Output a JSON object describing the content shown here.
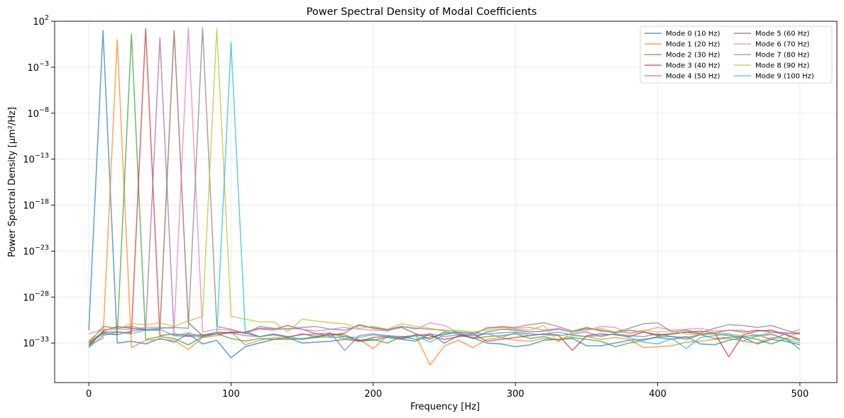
{
  "chart_data": {
    "type": "line",
    "title": "Power Spectral Density of Modal Coefficients",
    "xlabel": "Frequency [Hz]",
    "ylabel": "Power Spectral Density [μm²/Hz]",
    "xlim": [
      -24,
      526
    ],
    "ylog": true,
    "ylim_exp": [
      -37.3,
      2
    ],
    "x_ticks": [
      0,
      100,
      200,
      300,
      400,
      500
    ],
    "x_tick_labels": [
      "0",
      "100",
      "200",
      "300",
      "400",
      "500"
    ],
    "y_ticks_exp": [
      -33,
      -28,
      -23,
      -18,
      -13,
      -8,
      -3,
      2
    ],
    "y_tick_labels": [
      {
        "base": "10",
        "exp": "−33"
      },
      {
        "base": "10",
        "exp": "−28"
      },
      {
        "base": "10",
        "exp": "−23"
      },
      {
        "base": "10",
        "exp": "−18"
      },
      {
        "base": "10",
        "exp": "−13"
      },
      {
        "base": "10",
        "exp": "−8"
      },
      {
        "base": "10",
        "exp": "−3"
      },
      {
        "base": "10",
        "exp": "2"
      }
    ],
    "grid": true,
    "legend_position": "top-right",
    "legend_columns": 2,
    "x": [
      0,
      10,
      20,
      30,
      40,
      50,
      60,
      70,
      80,
      90,
      100,
      110,
      120,
      130,
      140,
      150,
      160,
      170,
      180,
      190,
      200,
      210,
      220,
      230,
      240,
      250,
      260,
      270,
      280,
      290,
      300,
      310,
      320,
      330,
      340,
      350,
      360,
      370,
      380,
      390,
      400,
      410,
      420,
      430,
      440,
      450,
      460,
      470,
      480,
      490,
      500
    ],
    "series": [
      {
        "name": "Mode 0 (10 Hz)",
        "color": "#1f77b4",
        "log10_values": [
          -31.6,
          1.0,
          -33.0,
          -32.8,
          -33.1,
          -32.5,
          -32.9,
          -32.0,
          -33.1,
          -32.7,
          -34.6,
          -33.4,
          -33.0,
          -32.6,
          -32.4,
          -33.0,
          -32.9,
          -32.8,
          -32.6,
          -32.8,
          -32.7,
          -32.4,
          -32.6,
          -32.8,
          -32.0,
          -33.0,
          -32.2,
          -32.4,
          -33.0,
          -33.1,
          -33.4,
          -33.2,
          -32.7,
          -32.6,
          -32.5,
          -33.3,
          -33.3,
          -33.0,
          -32.7,
          -32.6,
          -32.4,
          -32.6,
          -32.3,
          -33.1,
          -33.2,
          -32.7,
          -32.4,
          -33.1,
          -32.6,
          -32.8,
          -33.2
        ]
      },
      {
        "name": "Mode 1 (20 Hz)",
        "color": "#ff7f0e",
        "log10_values": [
          -33.2,
          -32.5,
          0.0,
          -33.5,
          -32.7,
          -32.6,
          -32.7,
          -33.7,
          -32.4,
          -32.2,
          -31.8,
          -33.2,
          -32.7,
          -32.4,
          -32.5,
          -32.6,
          -32.4,
          -32.3,
          -32.5,
          -32.6,
          -33.6,
          -32.2,
          -32.4,
          -32.2,
          -35.4,
          -33.3,
          -32.7,
          -33.5,
          -32.6,
          -32.4,
          -32.7,
          -32.8,
          -32.5,
          -32.6,
          -32.2,
          -32.3,
          -32.6,
          -32.4,
          -32.6,
          -33.5,
          -33.4,
          -33.3,
          -32.9,
          -32.8,
          -32.6,
          -32.5,
          -32.8,
          -33.0,
          -32.4,
          -32.5,
          -31.8
        ]
      },
      {
        "name": "Mode 2 (30 Hz)",
        "color": "#2ca02c",
        "log10_values": [
          -33.0,
          -32.0,
          -32.1,
          0.6,
          -32.6,
          -32.3,
          -32.5,
          -33.2,
          -32.3,
          -32.0,
          -32.5,
          -32.8,
          -32.5,
          -32.6,
          -32.6,
          -32.5,
          -32.4,
          -32.0,
          -32.3,
          -32.7,
          -32.6,
          -33.0,
          -32.3,
          -32.6,
          -32.4,
          -32.0,
          -31.8,
          -32.5,
          -32.3,
          -32.2,
          -32.0,
          -32.5,
          -32.3,
          -32.7,
          -32.4,
          -32.6,
          -32.8,
          -33.4,
          -33.0,
          -32.7,
          -32.3,
          -32.3,
          -32.6,
          -32.1,
          -32.5,
          -32.4,
          -32.3,
          -32.6,
          -33.1,
          -32.5,
          -33.7
        ]
      },
      {
        "name": "Mode 3 (40 Hz)",
        "color": "#d62728",
        "log10_values": [
          -33.2,
          -31.8,
          -31.8,
          -31.9,
          1.2,
          -32.2,
          -32.0,
          -32.2,
          -32.1,
          -32.0,
          -31.8,
          -31.9,
          -32.3,
          -32.1,
          -32.4,
          -32.0,
          -32.3,
          -32.0,
          -32.1,
          -32.8,
          -32.4,
          -32.3,
          -32.5,
          -32.1,
          -32.2,
          -32.6,
          -32.3,
          -32.0,
          -32.8,
          -32.6,
          -32.4,
          -32.2,
          -32.0,
          -32.1,
          -33.8,
          -32.2,
          -32.0,
          -32.1,
          -32.3,
          -31.8,
          -32.1,
          -32.0,
          -31.8,
          -32.0,
          -31.9,
          -34.5,
          -32.1,
          -31.7,
          -31.6,
          -32.1,
          -32.6
        ]
      },
      {
        "name": "Mode 4 (50 Hz)",
        "color": "#9467bd",
        "log10_values": [
          -32.8,
          -31.9,
          -32.1,
          -31.7,
          -31.5,
          0.2,
          -32.2,
          -32.3,
          -32.3,
          -32.0,
          -31.9,
          -32.2,
          -32.3,
          -32.0,
          -32.3,
          -32.1,
          -32.0,
          -31.9,
          -33.8,
          -32.2,
          -32.0,
          -32.2,
          -32.3,
          -32.2,
          -32.0,
          -32.3,
          -32.1,
          -32.2,
          -32.0,
          -31.9,
          -31.8,
          -32.0,
          -32.1,
          -32.2,
          -32.0,
          -31.8,
          -32.3,
          -32.0,
          -32.2,
          -32.3,
          -32.0,
          -32.3,
          -32.4,
          -32.1,
          -32.0,
          -32.2,
          -32.3,
          -32.1,
          -32.6,
          -32.0,
          -32.8
        ]
      },
      {
        "name": "Mode 5 (60 Hz)",
        "color": "#8c564b",
        "log10_values": [
          -33.4,
          -31.7,
          -31.2,
          -31.4,
          -31.6,
          -31.6,
          1.0,
          -30.8,
          -32.2,
          -31.8,
          -31.9,
          -31.8,
          -31.4,
          -31.5,
          -31.1,
          -31.5,
          -32.0,
          -32.2,
          -31.9,
          -31.0,
          -31.4,
          -31.6,
          -31.3,
          -32.0,
          -32.6,
          -31.8,
          -32.0,
          -32.5,
          -31.8,
          -31.5,
          -31.6,
          -31.8,
          -31.7,
          -31.5,
          -31.8,
          -31.4,
          -31.6,
          -31.9,
          -31.6,
          -31.8,
          -32.2,
          -32.0,
          -31.8,
          -31.7,
          -31.9,
          -31.6,
          -31.8,
          -31.6,
          -31.8,
          -31.9,
          -32.0
        ]
      },
      {
        "name": "Mode 6 (70 Hz)",
        "color": "#e377c2",
        "log10_values": [
          -32.0,
          -31.5,
          -31.5,
          -31.5,
          -31.3,
          -31.3,
          -31.4,
          1.3,
          -31.8,
          -31.5,
          -31.6,
          -31.9,
          -31.5,
          -31.6,
          -31.4,
          -31.5,
          -31.7,
          -31.5,
          -31.3,
          -31.5,
          -31.6,
          -31.7,
          -31.2,
          -31.5,
          -30.8,
          -31.1,
          -31.9,
          -32.2,
          -31.3,
          -31.3,
          -31.4,
          -31.3,
          -31.6,
          -31.4,
          -31.8,
          -31.6,
          -31.2,
          -31.3,
          -32.0,
          -31.7,
          -31.3,
          -31.6,
          -31.5,
          -31.4,
          -31.7,
          -31.6,
          -31.6,
          -32.3,
          -31.8,
          -32.1,
          -31.5
        ]
      },
      {
        "name": "Mode 7 (80 Hz)",
        "color": "#7f7f7f",
        "log10_values": [
          -33.0,
          -31.2,
          -31.4,
          -31.2,
          -31.5,
          -31.4,
          -31.3,
          -31.4,
          1.3,
          -31.2,
          -31.5,
          -32.0,
          -31.2,
          -31.4,
          -31.5,
          -31.3,
          -31.2,
          -31.5,
          -31.6,
          -31.1,
          -31.3,
          -31.5,
          -31.2,
          -31.4,
          -31.5,
          -31.6,
          -31.8,
          -32.0,
          -31.4,
          -31.2,
          -31.3,
          -31.0,
          -30.8,
          -31.2,
          -31.7,
          -31.3,
          -31.7,
          -31.8,
          -31.4,
          -30.9,
          -30.8,
          -31.8,
          -31.6,
          -31.9,
          -31.4,
          -31.0,
          -31.1,
          -31.3,
          -31.1,
          -31.6,
          -32.0
        ]
      },
      {
        "name": "Mode 8 (90 Hz)",
        "color": "#bcbd22",
        "log10_values": [
          -32.7,
          -31.5,
          -31.5,
          -30.9,
          -31.0,
          -30.8,
          -31.2,
          -30.6,
          -30.1,
          1.2,
          -30.1,
          -30.4,
          -30.7,
          -30.7,
          -31.8,
          -30.4,
          -30.6,
          -30.8,
          -30.9,
          -31.4,
          -31.2,
          -31.5,
          -30.9,
          -31.2,
          -31.4,
          -31.7,
          -31.6,
          -31.8,
          -31.6,
          -31.3,
          -31.5,
          -31.6,
          -31.1,
          -32.9,
          -31.8,
          -31.6,
          -31.4,
          -31.8,
          -31.9,
          -31.6,
          -31.8,
          -31.7,
          -32.0,
          -32.1,
          -31.9,
          -32.0,
          -32.2,
          -32.3,
          -32.1,
          -32.5,
          -32.7
        ]
      },
      {
        "name": "Mode 9 (100 Hz)",
        "color": "#17becf",
        "log10_values": [
          -33.5,
          -32.2,
          -31.8,
          -32.0,
          -31.6,
          -31.5,
          -32.2,
          -31.9,
          -32.3,
          -32.0,
          -0.3,
          -31.7,
          -32.3,
          -32.1,
          -32.3,
          -32.6,
          -32.2,
          -32.4,
          -32.3,
          -32.4,
          -32.1,
          -32.3,
          -32.6,
          -32.2,
          -32.9,
          -32.1,
          -31.8,
          -31.9,
          -32.0,
          -32.4,
          -31.9,
          -32.2,
          -32.0,
          -31.8,
          -32.1,
          -32.3,
          -32.2,
          -32.0,
          -32.4,
          -32.9,
          -33.1,
          -32.5,
          -33.6,
          -32.4,
          -32.2,
          -32.0,
          -32.8,
          -32.2,
          -32.0,
          -32.6,
          -33.0
        ]
      }
    ]
  }
}
